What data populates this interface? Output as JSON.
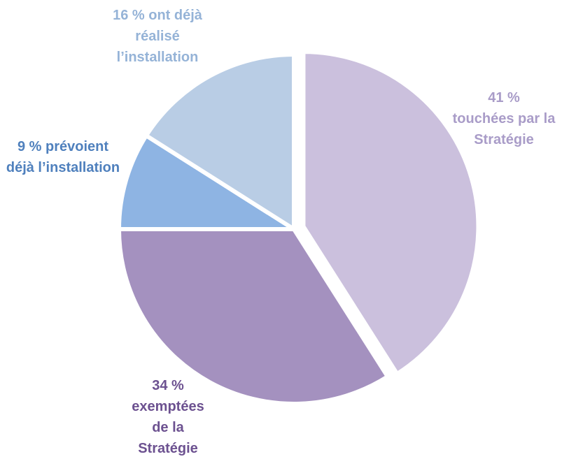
{
  "chart_data": {
    "type": "pie",
    "categories": [
      "touchées par la Stratégie",
      "exemptées de la Stratégie",
      "prévoient déjà l’installation",
      "ont déjà réalisé l’installation"
    ],
    "values": [
      41,
      34,
      9,
      16
    ],
    "value_labels": [
      "41 %",
      "34 %",
      "9 %",
      "16 %"
    ],
    "colors": [
      "#cbc0dd",
      "#a491bf",
      "#8eb4e3",
      "#b9cde5"
    ],
    "label_colors": [
      "#a99cc8",
      "#6c5190",
      "#4f80bd",
      "#95b3d7"
    ]
  }
}
